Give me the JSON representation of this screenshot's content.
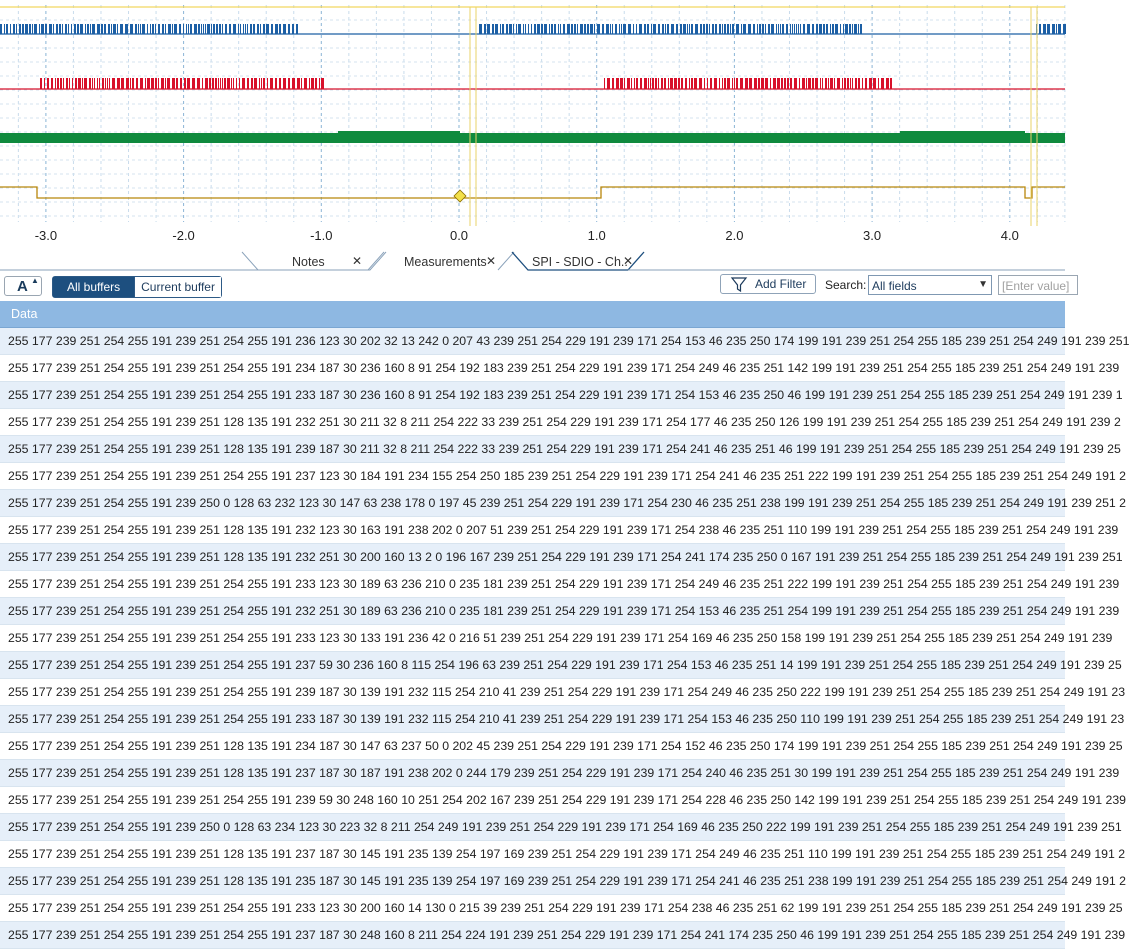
{
  "timeline": {
    "tick_labels": [
      "-3.0",
      "-2.0",
      "-1.0",
      "0.0",
      "1.0",
      "2.0",
      "3.0",
      "4.0"
    ],
    "trace_colors": [
      "#1c5fa5",
      "#d8102a",
      "#0f8a3e",
      "#b8860b"
    ]
  },
  "tabs": [
    {
      "label": "Notes"
    },
    {
      "label": "Measurements"
    },
    {
      "label": "SPI - SDIO - Ch.."
    }
  ],
  "toolbar": {
    "font_button_label": "A",
    "all_buffers_label": "All buffers",
    "current_buffer_label": "Current buffer",
    "add_filter_label": "Add Filter",
    "search_label": "Search:",
    "search_field_value": "All fields",
    "search_value_placeholder": "[Enter value]"
  },
  "table": {
    "column_header": "Data",
    "rows": [
      "255 177 239 251 254 255 191 239 251 254 255 191 236 123 30 202 32 13 242 0 207 43 239 251 254 229 191 239 171 254 153 46 235 250 174 199 191 239 251 254 255 185 239 251 254 249 191 239 251",
      "255 177 239 251 254 255 191 239 251 254 255 191 234 187 30 236 160 8 91 254 192 183 239 251 254 229 191 239 171 254 249 46 235 251 142 199 191 239 251 254 255 185 239 251 254 249 191 239",
      "255 177 239 251 254 255 191 239 251 254 255 191 233 187 30 236 160 8 91 254 192 183 239 251 254 229 191 239 171 254 153 46 235 250 46 199 191 239 251 254 255 185 239 251 254 249 191 239 1",
      "255 177 239 251 254 255 191 239 251 128 135 191 232 251 30 211 32 8 211 254 222 33 239 251 254 229 191 239 171 254 177 46 235 250 126 199 191 239 251 254 255 185 239 251 254 249 191 239 2",
      "255 177 239 251 254 255 191 239 251 128 135 191 239 187 30 211 32 8 211 254 222 33 239 251 254 229 191 239 171 254 241 46 235 251 46 199 191 239 251 254 255 185 239 251 254 249 191 239 25",
      "255 177 239 251 254 255 191 239 251 254 255 191 237 123 30 184 191 234 155 254 250 185 239 251 254 229 191 239 171 254 241 46 235 251 222 199 191 239 251 254 255 185 239 251 254 249 191 2",
      "255 177 239 251 254 255 191 239 250 0 128 63 232 123 30 147 63 238 178 0 197 45 239 251 254 229 191 239 171 254 230 46 235 251 238 199 191 239 251 254 255 185 239 251 254 249 191 239 251 2",
      "255 177 239 251 254 255 191 239 251 128 135 191 232 123 30 163 191 238 202 0 207 51 239 251 254 229 191 239 171 254 238 46 235 251 110 199 191 239 251 254 255 185 239 251 254 249 191 239",
      "255 177 239 251 254 255 191 239 251 128 135 191 232 251 30 200 160 13 2 0 196 167 239 251 254 229 191 239 171 254 241 174 235 250 0 167 191 239 251 254 255 185 239 251 254 249 191 239 251",
      "255 177 239 251 254 255 191 239 251 254 255 191 233 123 30 189 63 236 210 0 235 181 239 251 254 229 191 239 171 254 249 46 235 251 222 199 191 239 251 254 255 185 239 251 254 249 191 239",
      "255 177 239 251 254 255 191 239 251 254 255 191 232 251 30 189 63 236 210 0 235 181 239 251 254 229 191 239 171 254 153 46 235 251 254 199 191 239 251 254 255 185 239 251 254 249 191 239",
      "255 177 239 251 254 255 191 239 251 254 255 191 233 123 30 133 191 236 42 0 216 51 239 251 254 229 191 239 171 254 169 46 235 250 158 199 191 239 251 254 255 185 239 251 254 249 191 239",
      "255 177 239 251 254 255 191 239 251 254 255 191 237 59 30 236 160 8 115 254 196 63 239 251 254 229 191 239 171 254 153 46 235 251 14 199 191 239 251 254 255 185 239 251 254 249 191 239 25",
      "255 177 239 251 254 255 191 239 251 254 255 191 239 187 30 139 191 232 115 254 210 41 239 251 254 229 191 239 171 254 249 46 235 250 222 199 191 239 251 254 255 185 239 251 254 249 191 23",
      "255 177 239 251 254 255 191 239 251 254 255 191 233 187 30 139 191 232 115 254 210 41 239 251 254 229 191 239 171 254 153 46 235 250 110 199 191 239 251 254 255 185 239 251 254 249 191 23",
      "255 177 239 251 254 255 191 239 251 128 135 191 234 187 30 147 63 237 50 0 202 45 239 251 254 229 191 239 171 254 152 46 235 250 174 199 191 239 251 254 255 185 239 251 254 249 191 239 25",
      "255 177 239 251 254 255 191 239 251 128 135 191 237 187 30 187 191 238 202 0 244 179 239 251 254 229 191 239 171 254 240 46 235 251 30 199 191 239 251 254 255 185 239 251 254 249 191 239",
      "255 177 239 251 254 255 191 239 251 254 255 191 239 59 30 248 160 10 251 254 202 167 239 251 254 229 191 239 171 254 228 46 235 250 142 199 191 239 251 254 255 185 239 251 254 249 191 239",
      "255 177 239 251 254 255 191 239 250 0 128 63 234 123 30 223 32 8 211 254 249 191 239 251 254 229 191 239 171 254 169 46 235 250 222 199 191 239 251 254 255 185 239 251 254 249 191 239 251",
      "255 177 239 251 254 255 191 239 251 128 135 191 237 187 30 145 191 235 139 254 197 169 239 251 254 229 191 239 171 254 249 46 235 251 110 199 191 239 251 254 255 185 239 251 254 249 191 2",
      "255 177 239 251 254 255 191 239 251 128 135 191 235 187 30 145 191 235 139 254 197 169 239 251 254 229 191 239 171 254 241 46 235 251 238 199 191 239 251 254 255 185 239 251 254 249 191 2",
      "255 177 239 251 254 255 191 239 251 254 255 191 233 123 30 200 160 14 130 0 215 39 239 251 254 229 191 239 171 254 238 46 235 251 62 199 191 239 251 254 255 185 239 251 254 249 191 239 25",
      "255 177 239 251 254 255 191 239 251 254 255 191 237 187 30 248 160 8 211 254 224 191 239 251 254 229 191 239 171 254 241 174 235 250 46 199 191 239 251 254 255 185 239 251 254 249 191 239"
    ]
  }
}
